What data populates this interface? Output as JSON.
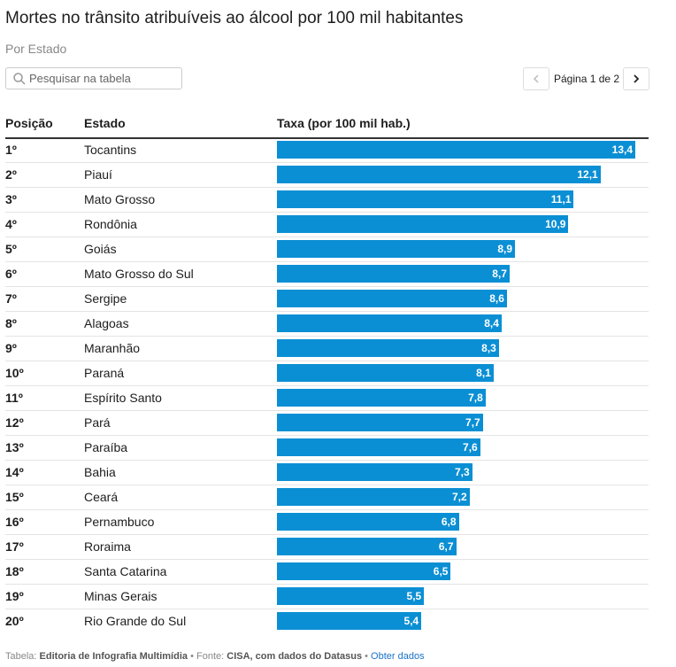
{
  "header": {
    "title": "Mortes no trânsito atribuíveis ao álcool por 100 mil habitantes",
    "subtitle": "Por Estado"
  },
  "search": {
    "placeholder": "Pesquisar na tabela"
  },
  "pagination": {
    "label": "Página 1 de 2"
  },
  "table": {
    "columns": [
      "Posição",
      "Estado",
      "Taxa (por 100 mil hab.)"
    ],
    "color": "#0b8fd4",
    "rows": [
      {
        "rank": "1º",
        "state": "Tocantins",
        "value": 13.4,
        "value_label": "13,4"
      },
      {
        "rank": "2º",
        "state": "Piauí",
        "value": 12.1,
        "value_label": "12,1"
      },
      {
        "rank": "3º",
        "state": "Mato Grosso",
        "value": 11.1,
        "value_label": "11,1"
      },
      {
        "rank": "4º",
        "state": "Rondônia",
        "value": 10.9,
        "value_label": "10,9"
      },
      {
        "rank": "5º",
        "state": "Goiás",
        "value": 8.9,
        "value_label": "8,9"
      },
      {
        "rank": "6º",
        "state": "Mato Grosso do Sul",
        "value": 8.7,
        "value_label": "8,7"
      },
      {
        "rank": "7º",
        "state": "Sergipe",
        "value": 8.6,
        "value_label": "8,6"
      },
      {
        "rank": "8º",
        "state": "Alagoas",
        "value": 8.4,
        "value_label": "8,4"
      },
      {
        "rank": "9º",
        "state": "Maranhão",
        "value": 8.3,
        "value_label": "8,3"
      },
      {
        "rank": "10º",
        "state": "Paraná",
        "value": 8.1,
        "value_label": "8,1"
      },
      {
        "rank": "11º",
        "state": "Espírito Santo",
        "value": 7.8,
        "value_label": "7,8"
      },
      {
        "rank": "12º",
        "state": "Pará",
        "value": 7.7,
        "value_label": "7,7"
      },
      {
        "rank": "13º",
        "state": "Paraíba",
        "value": 7.6,
        "value_label": "7,6"
      },
      {
        "rank": "14º",
        "state": "Bahia",
        "value": 7.3,
        "value_label": "7,3"
      },
      {
        "rank": "15º",
        "state": "Ceará",
        "value": 7.2,
        "value_label": "7,2"
      },
      {
        "rank": "16º",
        "state": "Pernambuco",
        "value": 6.8,
        "value_label": "6,8"
      },
      {
        "rank": "17º",
        "state": "Roraima",
        "value": 6.7,
        "value_label": "6,7"
      },
      {
        "rank": "18º",
        "state": "Santa Catarina",
        "value": 6.5,
        "value_label": "6,5"
      },
      {
        "rank": "19º",
        "state": "Minas Gerais",
        "value": 5.5,
        "value_label": "5,5"
      },
      {
        "rank": "20º",
        "state": "Rio Grande do Sul",
        "value": 5.4,
        "value_label": "5,4"
      }
    ]
  },
  "footer": {
    "source_label": "Tabela:",
    "author": "Editoria de Infografia Multimídia",
    "sep1": "•",
    "fonte_label": "Fonte:",
    "source": "CISA, com dados do Datasus",
    "sep2": "•",
    "link": "Obter dados"
  }
}
